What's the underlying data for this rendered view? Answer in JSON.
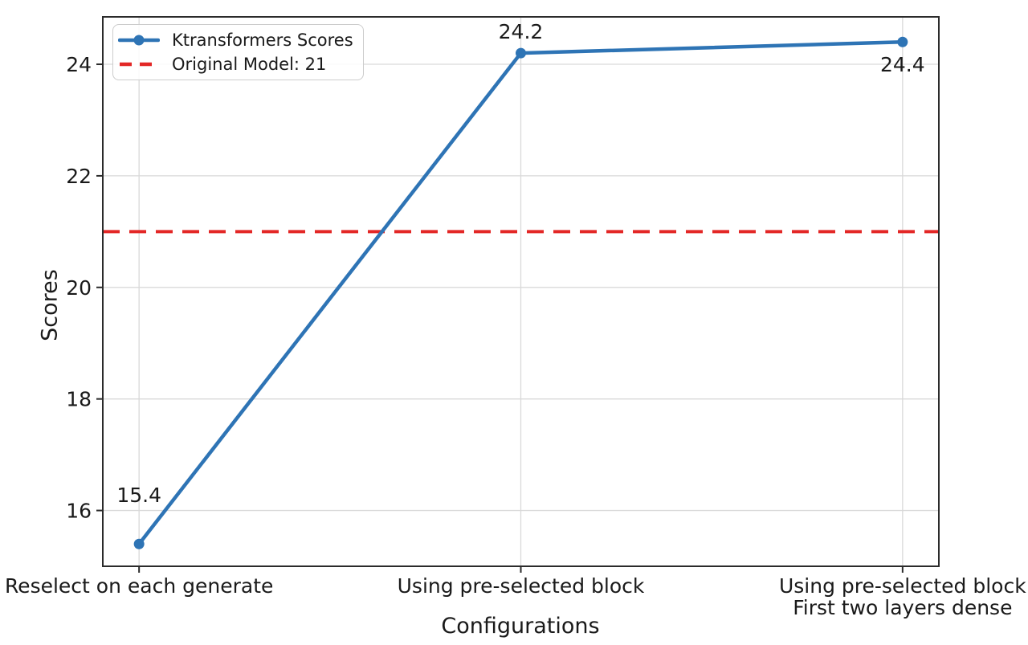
{
  "chart_data": {
    "type": "line",
    "title": "",
    "xlabel": "Configurations",
    "ylabel": "Scores",
    "categories": [
      [
        "Reselect on each generate"
      ],
      [
        "Using pre-selected block"
      ],
      [
        "Using pre-selected block",
        "First two layers dense"
      ]
    ],
    "series": [
      {
        "name": "Ktransformers Scores",
        "values": [
          15.4,
          24.2,
          24.4
        ],
        "color": "#2e74b5",
        "marker": "circle"
      }
    ],
    "reference_line": {
      "label": "Original Model: 21",
      "value": 21,
      "color": "#e32726",
      "style": "dashed"
    },
    "point_labels": [
      {
        "text": "15.4",
        "dy": -52
      },
      {
        "text": "24.2",
        "dy": -18
      },
      {
        "text": "24.4",
        "dy": 37
      }
    ],
    "yticks": [
      16,
      18,
      20,
      22,
      24
    ],
    "ylim": [
      15.0,
      24.85
    ],
    "xlim": [
      -0.095,
      2.095
    ],
    "grid": true,
    "legend_position": "upper-left",
    "colors": {
      "grid": "#d9d9d9",
      "spine": "#2b2b2b",
      "text": "#1a1a1a",
      "background": "#ffffff"
    }
  }
}
